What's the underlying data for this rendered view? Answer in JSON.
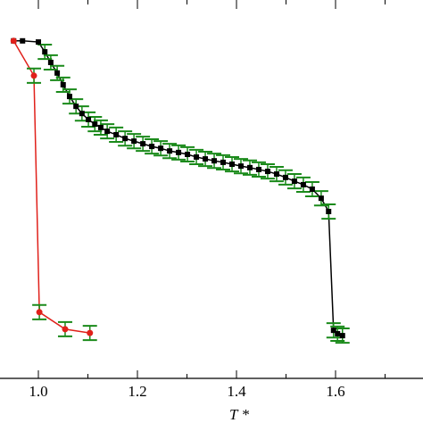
{
  "chart_data": {
    "type": "line",
    "xlabel": "T *",
    "xlim": [
      0.9225,
      1.7766
    ],
    "ylim": [
      0,
      1
    ],
    "xticks": [
      {
        "value": 1.0,
        "label": "1.0"
      },
      {
        "value": 1.2,
        "label": "1.2"
      },
      {
        "value": 1.4,
        "label": "1.4"
      },
      {
        "value": 1.6,
        "label": "1.6"
      }
    ],
    "xminorticks": [
      1.1,
      1.3,
      1.5,
      1.7
    ],
    "error_color": "#1a8a1a",
    "series": [
      {
        "color": "#000000",
        "marker": "square",
        "x": [
          0.95,
          0.968,
          1.0,
          1.013,
          1.025,
          1.038,
          1.05,
          1.063,
          1.076,
          1.088,
          1.101,
          1.114,
          1.126,
          1.139,
          1.157,
          1.175,
          1.193,
          1.211,
          1.229,
          1.247,
          1.265,
          1.283,
          1.301,
          1.319,
          1.337,
          1.355,
          1.373,
          1.391,
          1.409,
          1.427,
          1.445,
          1.463,
          1.481,
          1.499,
          1.517,
          1.535,
          1.553,
          1.571,
          1.586,
          1.596,
          1.604,
          1.614
        ],
        "values": [
          0.892,
          0.892,
          0.889,
          0.863,
          0.835,
          0.807,
          0.776,
          0.745,
          0.719,
          0.7,
          0.684,
          0.672,
          0.663,
          0.653,
          0.644,
          0.634,
          0.627,
          0.62,
          0.613,
          0.608,
          0.601,
          0.597,
          0.592,
          0.585,
          0.58,
          0.575,
          0.571,
          0.566,
          0.561,
          0.557,
          0.552,
          0.547,
          0.54,
          0.531,
          0.521,
          0.512,
          0.5,
          0.476,
          0.441,
          0.127,
          0.118,
          0.113
        ],
        "errors": [
          null,
          null,
          null,
          0.019,
          0.019,
          0.019,
          0.019,
          0.019,
          0.019,
          0.019,
          0.019,
          0.019,
          0.019,
          0.019,
          0.019,
          0.019,
          0.019,
          0.019,
          0.019,
          0.019,
          0.019,
          0.019,
          0.019,
          0.019,
          0.019,
          0.019,
          0.019,
          0.019,
          0.019,
          0.019,
          0.019,
          0.019,
          0.019,
          0.019,
          0.019,
          0.019,
          0.019,
          0.019,
          0.019,
          0.019,
          0.019,
          0.019
        ]
      },
      {
        "color": "#e0201a",
        "marker": "circle",
        "x": [
          0.95,
          0.991,
          1.002,
          1.054,
          1.104
        ],
        "values": [
          0.892,
          0.8,
          0.175,
          0.13,
          0.12
        ],
        "errors": [
          null,
          0.019,
          0.019,
          0.019,
          0.019
        ]
      }
    ]
  }
}
